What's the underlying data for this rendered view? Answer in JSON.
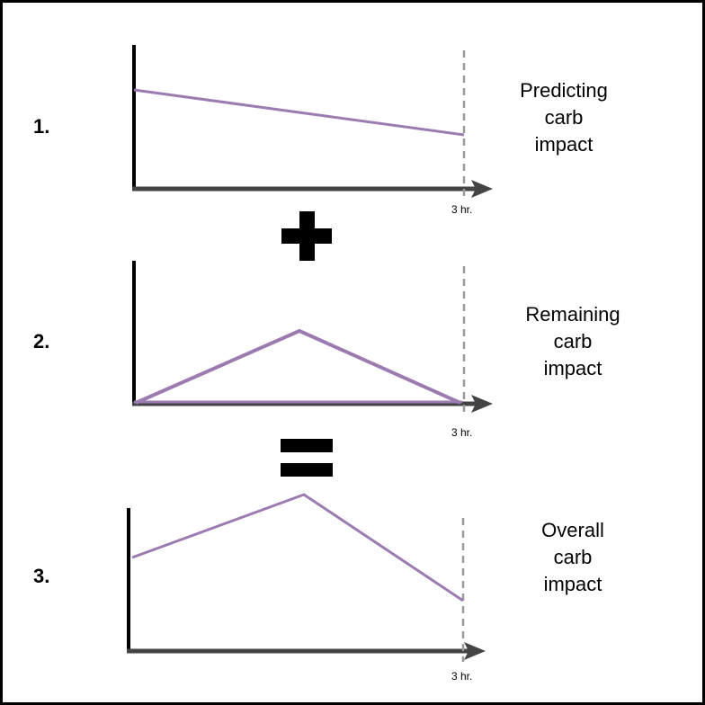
{
  "panels": [
    {
      "number": "1.",
      "description": [
        "Predicting",
        "carb",
        "impact"
      ],
      "end_label": "3 hr."
    },
    {
      "number": "2.",
      "description": [
        "Remaining",
        "carb",
        "impact"
      ],
      "end_label": "3 hr."
    },
    {
      "number": "3.",
      "description": [
        "Overall",
        "carb",
        "impact"
      ],
      "end_label": "3 hr."
    }
  ],
  "operators": {
    "first": "plus",
    "second": "equals"
  },
  "colors": {
    "curve": "#9b7bb0",
    "axis": "#000000",
    "marker": "#999999"
  }
}
